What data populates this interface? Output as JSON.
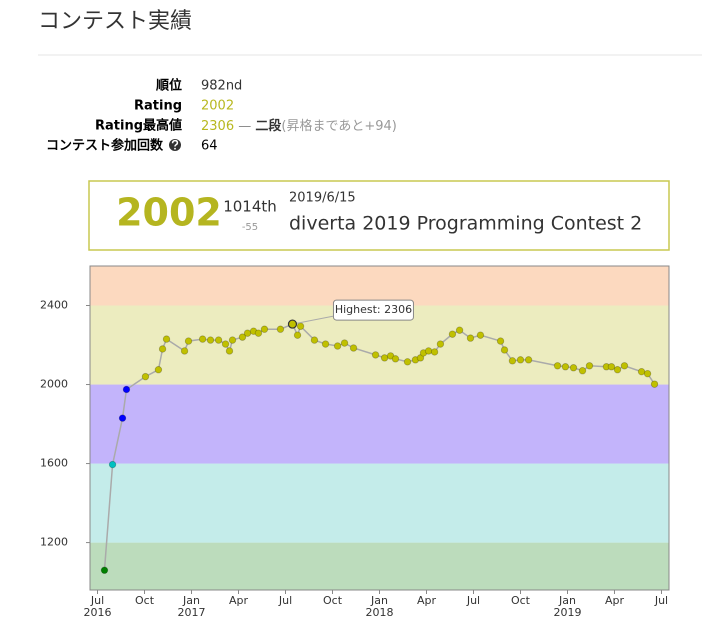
{
  "header": {
    "title": "コンテスト実績"
  },
  "profile": {
    "rows": [
      {
        "label": "順位",
        "value": "982nd"
      },
      {
        "label": "Rating",
        "value": "2002"
      },
      {
        "label": "Rating最高値",
        "value": "2306",
        "separator": "—",
        "rank": "二段",
        "note": "(昇格まであと+94)"
      },
      {
        "label": "コンテスト参加回数",
        "value": "64"
      }
    ]
  },
  "latest_contest": {
    "rating": "2002",
    "place": "1014th",
    "diff": "-55",
    "date": "2019/6/15",
    "name": "diverta 2019 Programming Contest 2"
  },
  "chart_data": {
    "type": "line",
    "x": [
      2016.537,
      2016.58,
      2016.633,
      2016.654,
      2016.755,
      2016.824,
      2016.846,
      2016.867,
      2016.963,
      2016.984,
      2017.059,
      2017.101,
      2017.144,
      2017.181,
      2017.202,
      2017.218,
      2017.271,
      2017.298,
      2017.33,
      2017.356,
      2017.388,
      2017.473,
      2017.537,
      2017.564,
      2017.58,
      2017.654,
      2017.713,
      2017.777,
      2017.814,
      2017.862,
      2017.979,
      2018.027,
      2018.059,
      2018.085,
      2018.149,
      2018.191,
      2018.218,
      2018.234,
      2018.261,
      2018.293,
      2018.324,
      2018.388,
      2018.426,
      2018.484,
      2018.537,
      2018.644,
      2018.665,
      2018.707,
      2018.75,
      2018.793,
      2018.947,
      2018.989,
      2019.032,
      2019.08,
      2019.117,
      2019.207,
      2019.234,
      2019.266,
      2019.303,
      2019.394,
      2019.426,
      2019.463
    ],
    "values": [
      1060,
      1595,
      1830,
      1975,
      2040,
      2075,
      2180,
      2230,
      2170,
      2220,
      2230,
      2225,
      2225,
      2205,
      2170,
      2225,
      2240,
      2260,
      2270,
      2260,
      2280,
      2280,
      2306,
      2250,
      2295,
      2225,
      2205,
      2195,
      2210,
      2185,
      2150,
      2135,
      2145,
      2130,
      2115,
      2125,
      2135,
      2160,
      2170,
      2165,
      2205,
      2255,
      2275,
      2235,
      2250,
      2220,
      2175,
      2120,
      2125,
      2125,
      2095,
      2090,
      2085,
      2070,
      2095,
      2090,
      2090,
      2075,
      2095,
      2065,
      2055,
      2002
    ],
    "line_color": "#aaaaaa",
    "bands": [
      {
        "from": 800,
        "to": 1200,
        "color": "#bcdcbc",
        "point_color": "#008000"
      },
      {
        "from": 1200,
        "to": 1600,
        "color": "#c4ecea",
        "point_color": "#00c0c0"
      },
      {
        "from": 1600,
        "to": 2000,
        "color": "#c3b4fb",
        "point_color": "#0000ff"
      },
      {
        "from": 2000,
        "to": 2400,
        "color": "#ececbf",
        "point_color": "#c0c000"
      },
      {
        "from": 2400,
        "to": 2800,
        "color": "#fcd9bf",
        "point_color": "#ff8000"
      }
    ],
    "xlim": [
      2016.46,
      2019.54
    ],
    "ylim": [
      960,
      2600
    ],
    "yticks": [
      1200,
      1600,
      2000,
      2400
    ],
    "xticks": [
      {
        "value": 2016.5,
        "label": "Jul",
        "year": "2016"
      },
      {
        "value": 2016.75,
        "label": "Oct"
      },
      {
        "value": 2017.0,
        "label": "Jan",
        "year": "2017"
      },
      {
        "value": 2017.25,
        "label": "Apr"
      },
      {
        "value": 2017.5,
        "label": "Jul"
      },
      {
        "value": 2017.75,
        "label": "Oct"
      },
      {
        "value": 2018.0,
        "label": "Jan",
        "year": "2018"
      },
      {
        "value": 2018.25,
        "label": "Apr"
      },
      {
        "value": 2018.5,
        "label": "Jul"
      },
      {
        "value": 2018.75,
        "label": "Oct"
      },
      {
        "value": 2019.0,
        "label": "Jan",
        "year": "2019"
      },
      {
        "value": 2019.25,
        "label": "Apr"
      },
      {
        "value": 2019.5,
        "label": "Jul"
      }
    ],
    "annotation": {
      "label": "Highest: 2306",
      "value": 2306
    }
  }
}
